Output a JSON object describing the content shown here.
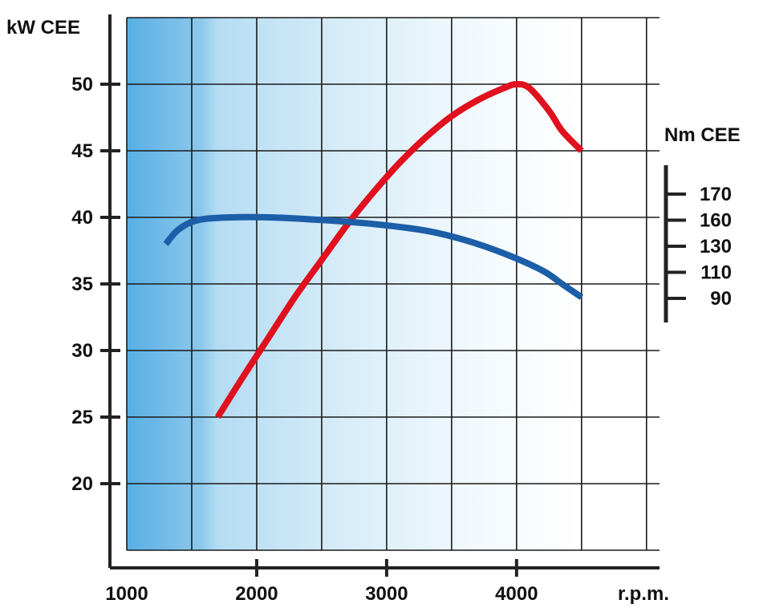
{
  "chart_data": {
    "type": "line",
    "x_axis": {
      "label": "r.p.m.",
      "ticks": [
        1000,
        2000,
        3000,
        4000
      ],
      "range": [
        1000,
        5100
      ],
      "grid_step": 500
    },
    "y_left": {
      "label": "kW CEE",
      "ticks": [
        20,
        25,
        30,
        35,
        40,
        45,
        50
      ],
      "range": [
        15,
        55
      ]
    },
    "y_right": {
      "label": "Nm CEE",
      "tick_labels": [
        "170",
        "160",
        "130",
        "110",
        "90"
      ]
    },
    "grid": true,
    "series": [
      {
        "axis": "left",
        "color": "#e0101e",
        "points": [
          [
            1700,
            25
          ],
          [
            1900,
            28.1
          ],
          [
            2100,
            31.1
          ],
          [
            2300,
            34.1
          ],
          [
            2500,
            36.8
          ],
          [
            2700,
            39.5
          ],
          [
            2900,
            41.9
          ],
          [
            3100,
            44.1
          ],
          [
            3300,
            46
          ],
          [
            3500,
            47.6
          ],
          [
            3700,
            48.8
          ],
          [
            3900,
            49.7
          ],
          [
            4000,
            50
          ],
          [
            4100,
            49.7
          ],
          [
            4250,
            48
          ],
          [
            4350,
            46.5
          ],
          [
            4500,
            45
          ]
        ]
      },
      {
        "axis": "left",
        "color": "#1c5ea8",
        "points": [
          [
            1300,
            38
          ],
          [
            1400,
            39.1
          ],
          [
            1550,
            39.8
          ],
          [
            1800,
            40
          ],
          [
            2100,
            40
          ],
          [
            2500,
            39.8
          ],
          [
            2900,
            39.5
          ],
          [
            3300,
            39
          ],
          [
            3600,
            38.3
          ],
          [
            3900,
            37.3
          ],
          [
            4200,
            36
          ],
          [
            4350,
            35
          ],
          [
            4500,
            34
          ]
        ]
      }
    ]
  }
}
